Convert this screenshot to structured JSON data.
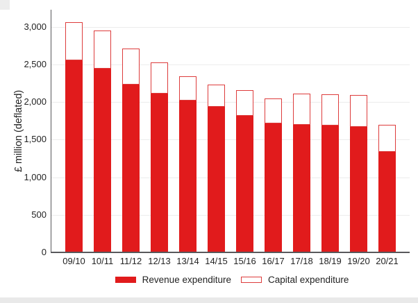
{
  "chart_data": {
    "type": "bar",
    "subtype": "stacked",
    "title": "",
    "xlabel": "",
    "ylabel": "£ million (deflated)",
    "categories": [
      "09/10",
      "10/11",
      "11/12",
      "12/13",
      "13/14",
      "14/15",
      "15/16",
      "16/17",
      "17/18",
      "18/19",
      "19/20",
      "20/21"
    ],
    "series": [
      {
        "name": "Revenue expenditure",
        "style": "solid-fill",
        "values": [
          2555,
          2440,
          2235,
          2110,
          2020,
          1940,
          1820,
          1715,
          1695,
          1685,
          1665,
          1335
        ]
      },
      {
        "name": "Capital expenditure",
        "style": "outline",
        "values": [
          505,
          510,
          480,
          420,
          325,
          295,
          335,
          330,
          415,
          415,
          430,
          365
        ]
      }
    ],
    "totals": [
      3060,
      2950,
      2715,
      2530,
      2345,
      2235,
      2155,
      2045,
      2110,
      2100,
      2095,
      1700
    ],
    "ylim": [
      0,
      3000
    ],
    "yticks": [
      {
        "value": 0,
        "label": "0"
      },
      {
        "value": 500,
        "label": "500"
      },
      {
        "value": 1000,
        "label": "1,000"
      },
      {
        "value": 1500,
        "label": "1,500"
      },
      {
        "value": 2000,
        "label": "2,000"
      },
      {
        "value": 2500,
        "label": "2,500"
      },
      {
        "value": 3000,
        "label": "3,000"
      }
    ],
    "grid": "horizontal-light",
    "legend_position": "bottom-center"
  },
  "colors": {
    "revenue_fill": "#e11b1c",
    "capital_outline": "#dd3b3b",
    "axis": "#58585b",
    "gridline": "#ececec",
    "text": "#232323",
    "bottom_strip": "#e9e9e9",
    "corner_artifact": "#ededed"
  }
}
